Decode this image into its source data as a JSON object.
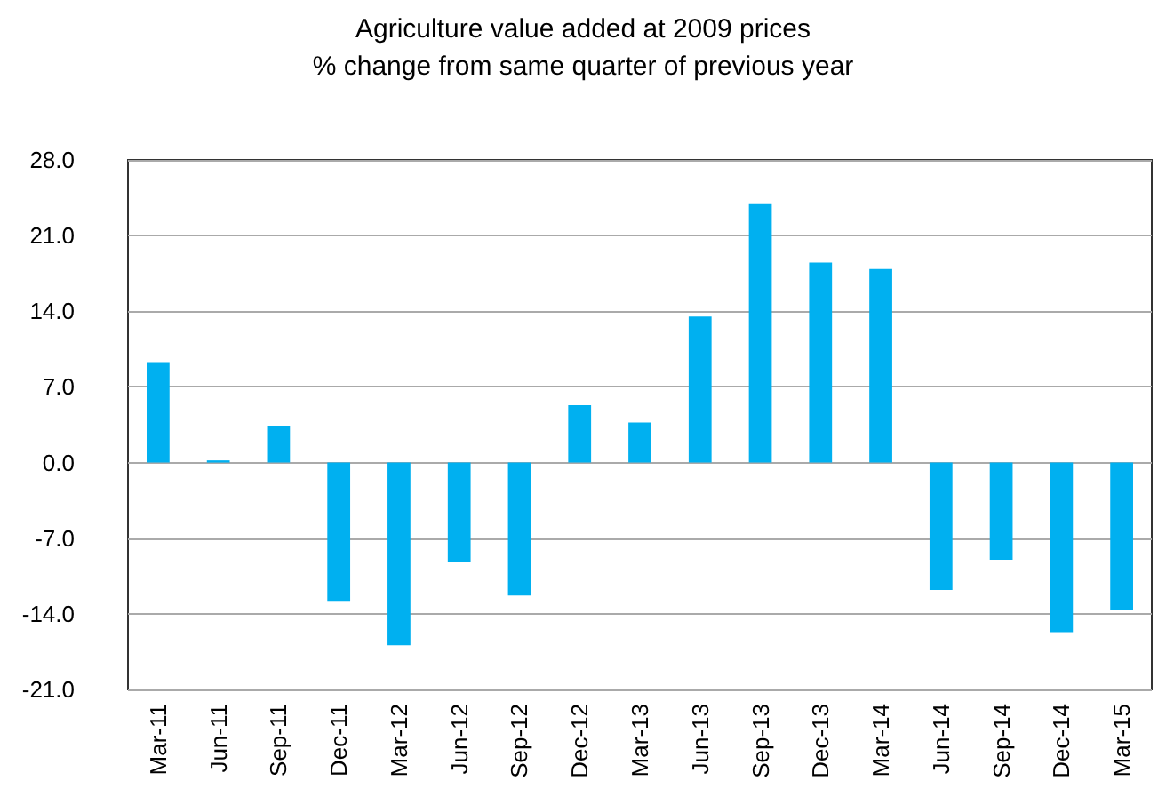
{
  "chart_data": {
    "type": "bar",
    "title": "Agriculture value added at 2009 prices",
    "subtitle": "% change from same quarter of previous year",
    "categories": [
      "Mar-11",
      "Jun-11",
      "Sep-11",
      "Dec-11",
      "Mar-12",
      "Jun-12",
      "Sep-12",
      "Dec-12",
      "Mar-13",
      "Jun-13",
      "Sep-13",
      "Dec-13",
      "Mar-14",
      "Jun-14",
      "Sep-14",
      "Dec-14",
      "Mar-15"
    ],
    "values": [
      9.3,
      0.2,
      3.4,
      -12.8,
      -16.9,
      -9.2,
      -12.3,
      5.3,
      3.7,
      13.5,
      23.9,
      18.5,
      17.9,
      -11.8,
      -9.0,
      -15.7,
      -13.6
    ],
    "color": "#00b0f0",
    "ylim": [
      -21,
      28
    ],
    "yticks": [
      {
        "value": -21,
        "label": "-21.0"
      },
      {
        "value": -14,
        "label": "-14.0"
      },
      {
        "value": -7,
        "label": "-7.0"
      },
      {
        "value": 0,
        "label": "0.0"
      },
      {
        "value": 7,
        "label": "7.0"
      },
      {
        "value": 14,
        "label": "14.0"
      },
      {
        "value": 21,
        "label": "21.0"
      },
      {
        "value": 28,
        "label": "28.0"
      }
    ],
    "grid": "y"
  }
}
